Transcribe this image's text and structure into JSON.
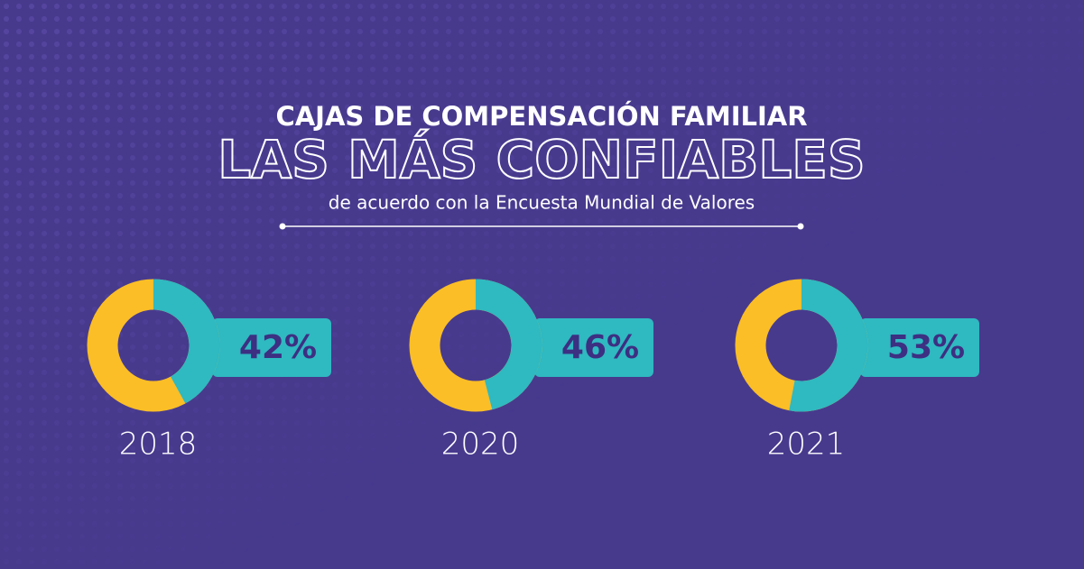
{
  "header": {
    "title": "CAJAS DE COMPENSACIÓN FAMILIAR",
    "headline": "LAS MÁS CONFIABLES",
    "subtitle": "de acuerdo con la Encuesta Mundial de Valores"
  },
  "chart_data": [
    {
      "type": "donut",
      "title": "2018",
      "values": [
        42
      ],
      "value_labels": [
        "42%"
      ],
      "color": "#2fb9c1"
    },
    {
      "type": "donut",
      "title": "2020",
      "values": [
        46
      ],
      "value_labels": [
        "46%"
      ],
      "color": "#2fb9c1"
    },
    {
      "type": "donut",
      "title": "2021",
      "values": [
        53
      ],
      "value_labels": [
        "53%"
      ],
      "color": "#2fb9c1"
    }
  ]
}
